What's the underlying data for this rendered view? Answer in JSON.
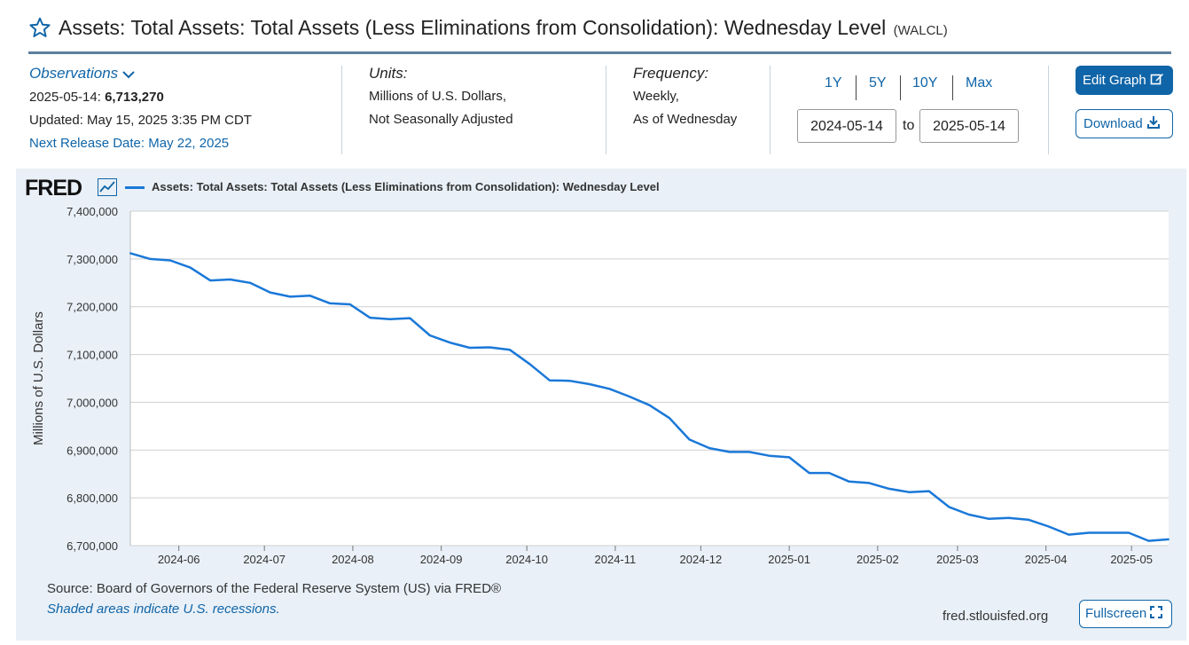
{
  "page": {
    "title": "Assets: Total Assets: Total Assets (Less Eliminations from Consolidation): Wednesday Level",
    "series_id": "(WALCL)"
  },
  "meta": {
    "observations_label": "Observations",
    "obs_date": "2025-05-14:",
    "obs_value": "6,713,270",
    "updated": "Updated: May 15, 2025 3:35 PM CDT",
    "next_release": "Next Release Date: May 22, 2025",
    "units_label": "Units:",
    "units_line1": "Millions of U.S. Dollars,",
    "units_line2": "Not Seasonally Adjusted",
    "freq_label": "Frequency:",
    "freq_line1": "Weekly,",
    "freq_line2": "As of Wednesday"
  },
  "controls": {
    "range_buttons": [
      "1Y",
      "5Y",
      "10Y",
      "Max"
    ],
    "start_date": "2024-05-14",
    "to_label": "to",
    "end_date": "2025-05-14",
    "edit_label": "Edit Graph",
    "download_label": "Download",
    "fullscreen_label": "Fullscreen"
  },
  "footer": {
    "source": "Source: Board of Governors of the Federal Reserve System (US) via FRED®",
    "shaded": "Shaded areas indicate U.S. recessions.",
    "url": "fred.stlouisfed.org"
  },
  "logo_text": "FRED",
  "colors": {
    "accent": "#1065a8",
    "line": "#1a78d8",
    "panel": "#e9f0f7"
  },
  "chart_data": {
    "type": "line",
    "ylabel": "Millions of U.S. Dollars",
    "ylim": [
      6700000,
      7400000
    ],
    "yticks": [
      7400000,
      7300000,
      7200000,
      7100000,
      7000000,
      6900000,
      6800000,
      6700000
    ],
    "ytick_labels": [
      "7,400,000",
      "7,300,000",
      "7,200,000",
      "7,100,000",
      "7,000,000",
      "6,900,000",
      "6,800,000",
      "6,700,000"
    ],
    "xlim": [
      "2024-05-15",
      "2025-05-14"
    ],
    "xticks": [
      "2024-06-01",
      "2024-07-01",
      "2024-08-01",
      "2024-09-01",
      "2024-10-01",
      "2024-11-01",
      "2024-12-01",
      "2025-01-01",
      "2025-02-01",
      "2025-03-01",
      "2025-04-01",
      "2025-05-01"
    ],
    "xtick_labels": [
      "2024-06",
      "2024-07",
      "2024-08",
      "2024-09",
      "2024-10",
      "2024-11",
      "2024-12",
      "2025-01",
      "2025-02",
      "2025-03",
      "2025-04",
      "2025-05"
    ],
    "grid": true,
    "legend": "top-left",
    "series": [
      {
        "name": "Assets: Total Assets: Total Assets (Less Eliminations from Consolidation): Wednesday Level",
        "x": [
          "2024-05-15",
          "2024-05-22",
          "2024-05-29",
          "2024-06-05",
          "2024-06-12",
          "2024-06-19",
          "2024-06-26",
          "2024-07-03",
          "2024-07-10",
          "2024-07-17",
          "2024-07-24",
          "2024-07-31",
          "2024-08-07",
          "2024-08-14",
          "2024-08-21",
          "2024-08-28",
          "2024-09-04",
          "2024-09-11",
          "2024-09-18",
          "2024-09-25",
          "2024-10-02",
          "2024-10-09",
          "2024-10-16",
          "2024-10-23",
          "2024-10-30",
          "2024-11-06",
          "2024-11-13",
          "2024-11-20",
          "2024-11-27",
          "2024-12-04",
          "2024-12-11",
          "2024-12-18",
          "2024-12-25",
          "2025-01-01",
          "2025-01-08",
          "2025-01-15",
          "2025-01-22",
          "2025-01-29",
          "2025-02-05",
          "2025-02-12",
          "2025-02-19",
          "2025-02-26",
          "2025-03-05",
          "2025-03-12",
          "2025-03-19",
          "2025-03-26",
          "2025-04-02",
          "2025-04-09",
          "2025-04-16",
          "2025-04-23",
          "2025-04-30",
          "2025-05-07",
          "2025-05-14"
        ],
        "values": [
          7312000,
          7300000,
          7297000,
          7282000,
          7255000,
          7257000,
          7250000,
          7230000,
          7221000,
          7223000,
          7207000,
          7205000,
          7177000,
          7174000,
          7176000,
          7140000,
          7125000,
          7114000,
          7115000,
          7110000,
          7080000,
          7046000,
          7045000,
          7038000,
          7028000,
          7012000,
          6994000,
          6967000,
          6922000,
          6904000,
          6896000,
          6896000,
          6888000,
          6885000,
          6852000,
          6852000,
          6834000,
          6831000,
          6819000,
          6812000,
          6814000,
          6781000,
          6765000,
          6756000,
          6758000,
          6754000,
          6740000,
          6723000,
          6727000,
          6727000,
          6727000,
          6710000,
          6713270
        ]
      }
    ]
  }
}
